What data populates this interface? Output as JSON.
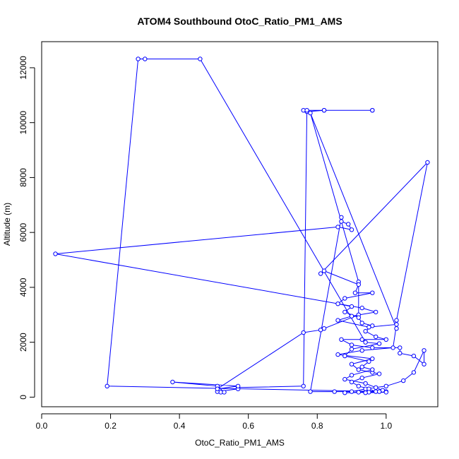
{
  "chart_data": {
    "type": "scatter",
    "title": "ATOM4 Southbound OtoC_Ratio_PM1_AMS",
    "xlabel": "OtoC_Ratio_PM1_AMS",
    "ylabel": "Altitude (m)",
    "xlim": [
      0.0,
      1.15
    ],
    "ylim": [
      -350,
      12950
    ],
    "xticks": [
      0.0,
      0.2,
      0.4,
      0.6,
      0.8,
      1.0
    ],
    "xtick_labels": [
      "0.0",
      "0.2",
      "0.4",
      "0.6",
      "0.8",
      "1.0"
    ],
    "yticks": [
      0,
      2000,
      4000,
      6000,
      8000,
      10000,
      12000
    ],
    "ytick_labels": [
      "0",
      "2000",
      "4000",
      "6000",
      "8000",
      "10000",
      "12000"
    ],
    "grid": false,
    "colors": {
      "series": "#0000ff",
      "axis": "#000000"
    },
    "series": [
      {
        "points": [
          [
            0.76,
            10450
          ],
          [
            0.77,
            10400
          ],
          [
            0.82,
            10450
          ],
          [
            0.96,
            10450
          ],
          [
            0.96,
            10450
          ],
          [
            0.82,
            10450
          ],
          [
            0.77,
            10450
          ],
          [
            0.76,
            400
          ],
          [
            0.57,
            350
          ],
          [
            0.57,
            300
          ],
          [
            0.51,
            200
          ],
          [
            0.52,
            180
          ],
          [
            0.53,
            180
          ],
          [
            0.51,
            400
          ],
          [
            0.38,
            550
          ],
          [
            0.57,
            400
          ],
          [
            0.51,
            300
          ],
          [
            0.76,
            2350
          ],
          [
            0.81,
            2450
          ],
          [
            0.82,
            2500
          ],
          [
            0.92,
            3000
          ],
          [
            0.92,
            4200
          ],
          [
            0.78,
            10350
          ],
          [
            1.03,
            2500
          ],
          [
            1.03,
            2800
          ],
          [
            1.12,
            8550
          ],
          [
            0.81,
            4500
          ],
          [
            0.82,
            4600
          ],
          [
            0.92,
            4100
          ],
          [
            0.91,
            3800
          ],
          [
            0.96,
            3800
          ],
          [
            0.88,
            3600
          ],
          [
            0.86,
            3400
          ],
          [
            0.9,
            3300
          ],
          [
            0.88,
            3100
          ],
          [
            0.92,
            2900
          ],
          [
            0.93,
            2700
          ],
          [
            0.96,
            2600
          ],
          [
            0.94,
            2400
          ],
          [
            0.97,
            2200
          ],
          [
            1.0,
            2100
          ],
          [
            0.93,
            2100
          ],
          [
            0.87,
            2100
          ],
          [
            0.9,
            1900
          ],
          [
            0.96,
            1800
          ],
          [
            1.04,
            1800
          ],
          [
            1.04,
            1600
          ],
          [
            1.08,
            1500
          ],
          [
            1.11,
            1200
          ],
          [
            1.11,
            1700
          ],
          [
            1.08,
            900
          ],
          [
            1.05,
            600
          ],
          [
            1.0,
            400
          ],
          [
            0.94,
            300
          ],
          [
            0.9,
            200
          ],
          [
            0.85,
            200
          ],
          [
            0.78,
            200
          ],
          [
            0.87,
            6550
          ],
          [
            0.87,
            6400
          ],
          [
            0.89,
            6300
          ],
          [
            0.9,
            6100
          ],
          [
            0.86,
            6200
          ],
          [
            0.04,
            5220
          ],
          [
            0.93,
            3250
          ],
          [
            0.97,
            3100
          ],
          [
            0.9,
            2950
          ],
          [
            0.86,
            2800
          ],
          [
            0.95,
            2550
          ],
          [
            1.03,
            2650
          ],
          [
            1.02,
            1800
          ],
          [
            0.93,
            1700
          ],
          [
            0.86,
            1550
          ],
          [
            0.96,
            1400
          ],
          [
            0.9,
            1200
          ],
          [
            0.92,
            1000
          ],
          [
            0.96,
            900
          ],
          [
            0.98,
            850
          ],
          [
            0.93,
            700
          ],
          [
            0.9,
            550
          ],
          [
            0.92,
            400
          ],
          [
            0.95,
            300
          ],
          [
            0.97,
            200
          ],
          [
            1.0,
            200
          ],
          [
            0.19,
            400
          ],
          [
            0.28,
            12320
          ],
          [
            0.3,
            12320
          ],
          [
            0.46,
            12320
          ],
          [
            0.94,
            2000
          ],
          [
            0.98,
            1950
          ],
          [
            0.9,
            1750
          ],
          [
            0.88,
            1500
          ],
          [
            0.95,
            1300
          ],
          [
            0.93,
            1100
          ],
          [
            0.96,
            1000
          ],
          [
            0.9,
            800
          ],
          [
            0.88,
            650
          ],
          [
            0.94,
            500
          ],
          [
            0.97,
            350
          ],
          [
            0.99,
            250
          ],
          [
            0.92,
            180
          ],
          [
            0.88,
            160
          ],
          [
            0.95,
            180
          ],
          [
            0.98,
            200
          ],
          [
            1.0,
            180
          ],
          [
            0.94,
            160
          ]
        ]
      }
    ]
  }
}
